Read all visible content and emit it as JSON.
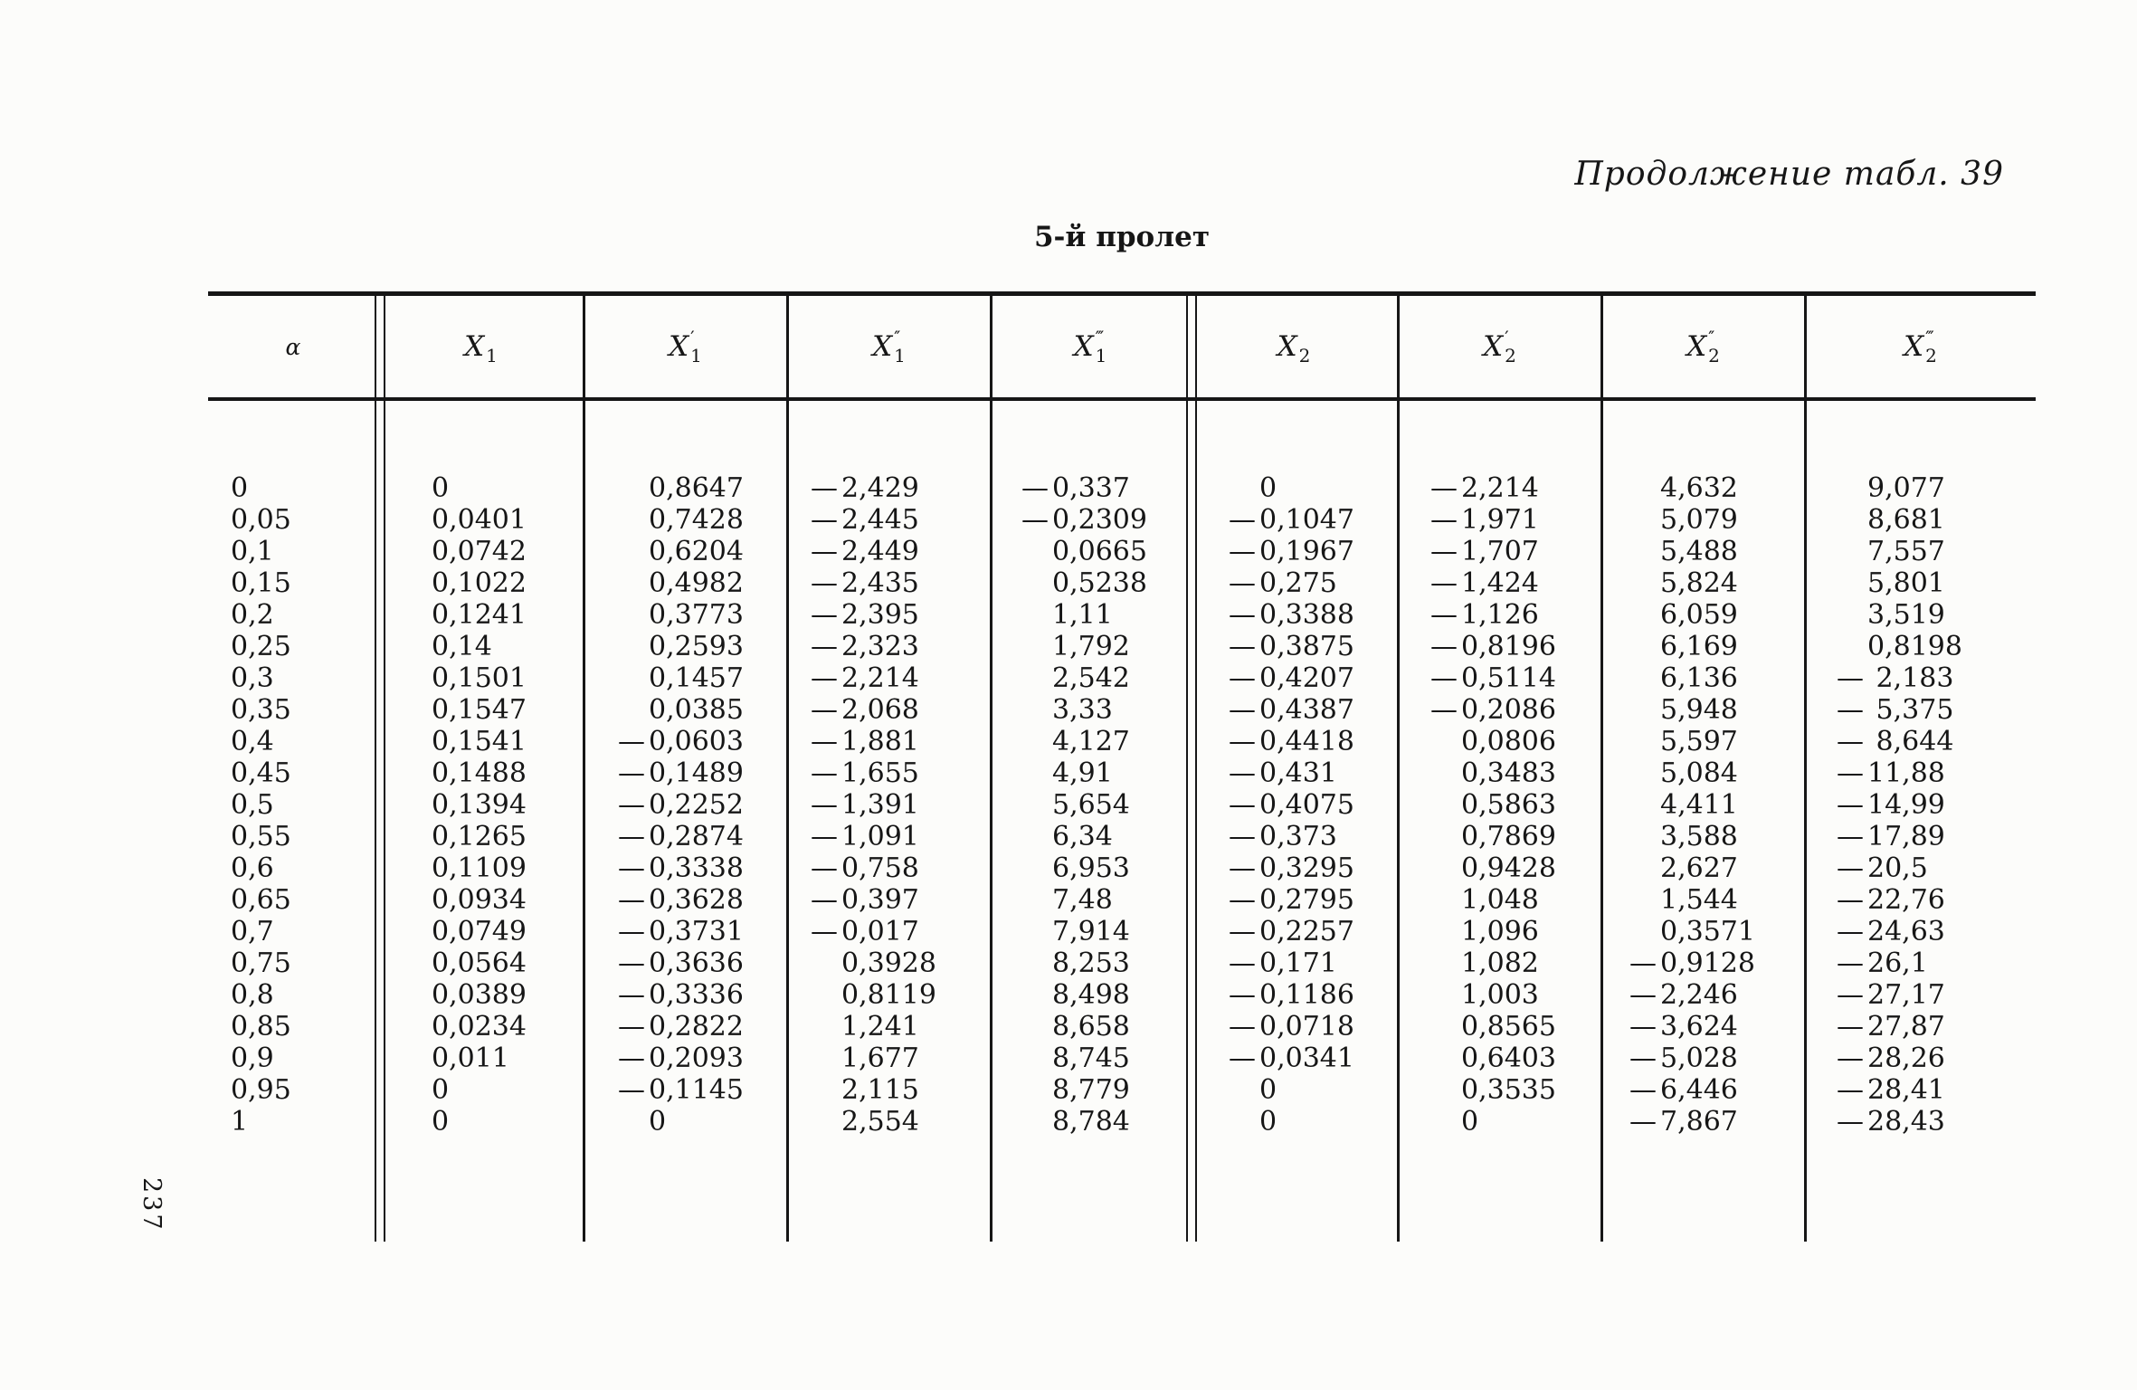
{
  "page": {
    "continuation_title": "Продолжение табл. 39",
    "subtitle": "5-й пролет",
    "number": "237"
  },
  "table": {
    "columns": [
      {
        "name": "alpha",
        "base": "α",
        "sub": "",
        "primes": ""
      },
      {
        "name": "X1",
        "base": "X",
        "sub": "1",
        "primes": ""
      },
      {
        "name": "X1-prime",
        "base": "X",
        "sub": "1",
        "primes": "′"
      },
      {
        "name": "X1-double-prime",
        "base": "X",
        "sub": "1",
        "primes": "′′"
      },
      {
        "name": "X1-triple-prime",
        "base": "X",
        "sub": "1",
        "primes": "′′′"
      },
      {
        "name": "X2",
        "base": "X",
        "sub": "2",
        "primes": ""
      },
      {
        "name": "X2-prime",
        "base": "X",
        "sub": "2",
        "primes": "′"
      },
      {
        "name": "X2-double-prime",
        "base": "X",
        "sub": "2",
        "primes": "′′"
      },
      {
        "name": "X2-triple-prime",
        "base": "X",
        "sub": "2",
        "primes": "′′′"
      }
    ],
    "rows": [
      [
        "0",
        "0",
        "0,8647",
        "—2,429",
        "—0,337",
        "0",
        "—2,214",
        "4,632",
        "9,077"
      ],
      [
        "0,05",
        "0,0401",
        "0,7428",
        "—2,445",
        "—0,2309",
        "—0,1047",
        "—1,971",
        "5,079",
        "8,681"
      ],
      [
        "0,1",
        "0,0742",
        "0,6204",
        "—2,449",
        "0,0665",
        "—0,1967",
        "—1,707",
        "5,488",
        "7,557"
      ],
      [
        "0,15",
        "0,1022",
        "0,4982",
        "—2,435",
        "0,5238",
        "—0,275",
        "—1,424",
        "5,824",
        "5,801"
      ],
      [
        "0,2",
        "0,1241",
        "0,3773",
        "—2,395",
        "1,11",
        "—0,3388",
        "—1,126",
        "6,059",
        "3,519"
      ],
      [
        "0,25",
        "0,14",
        "0,2593",
        "—2,323",
        "1,792",
        "—0,3875",
        "—0,8196",
        "6,169",
        "0,8198"
      ],
      [
        "0,3",
        "0,1501",
        "0,1457",
        "—2,214",
        "2,542",
        "—0,4207",
        "—0,5114",
        "6,136",
        "— 2,183"
      ],
      [
        "0,35",
        "0,1547",
        "0,0385",
        "—2,068",
        "3,33",
        "—0,4387",
        "—0,2086",
        "5,948",
        "— 5,375"
      ],
      [
        "0,4",
        "0,1541",
        "—0,0603",
        "—1,881",
        "4,127",
        "—0,4418",
        "0,0806",
        "5,597",
        "— 8,644"
      ],
      [
        "0,45",
        "0,1488",
        "—0,1489",
        "—1,655",
        "4,91",
        "—0,431",
        "0,3483",
        "5,084",
        "—11,88"
      ],
      [
        "0,5",
        "0,1394",
        "—0,2252",
        "—1,391",
        "5,654",
        "—0,4075",
        "0,5863",
        "4,411",
        "—14,99"
      ],
      [
        "0,55",
        "0,1265",
        "—0,2874",
        "—1,091",
        "6,34",
        "—0,373",
        "0,7869",
        "3,588",
        "—17,89"
      ],
      [
        "0,6",
        "0,1109",
        "—0,3338",
        "—0,758",
        "6,953",
        "—0,3295",
        "0,9428",
        "2,627",
        "—20,5"
      ],
      [
        "0,65",
        "0,0934",
        "—0,3628",
        "—0,397",
        "7,48",
        "—0,2795",
        "1,048",
        "1,544",
        "—22,76"
      ],
      [
        "0,7",
        "0,0749",
        "—0,3731",
        "—0,017",
        "7,914",
        "—0,2257",
        "1,096",
        "0,3571",
        "—24,63"
      ],
      [
        "0,75",
        "0,0564",
        "—0,3636",
        "0,3928",
        "8,253",
        "—0,171",
        "1,082",
        "—0,9128",
        "—26,1"
      ],
      [
        "0,8",
        "0,0389",
        "—0,3336",
        "0,8119",
        "8,498",
        "—0,1186",
        "1,003",
        "—2,246",
        "—27,17"
      ],
      [
        "0,85",
        "0,0234",
        "—0,2822",
        "1,241",
        "8,658",
        "—0,0718",
        "0,8565",
        "—3,624",
        "—27,87"
      ],
      [
        "0,9",
        "0,011",
        "—0,2093",
        "1,677",
        "8,745",
        "—0,0341",
        "0,6403",
        "—5,028",
        "—28,26"
      ],
      [
        "0,95",
        "0",
        "—0,1145",
        "2,115",
        "8,779",
        "0",
        "0,3535",
        "—6,446",
        "—28,41"
      ],
      [
        "1",
        "0",
        "0",
        "2,554",
        "8,784",
        "0",
        "0",
        "—7,867",
        "—28,43"
      ]
    ]
  }
}
